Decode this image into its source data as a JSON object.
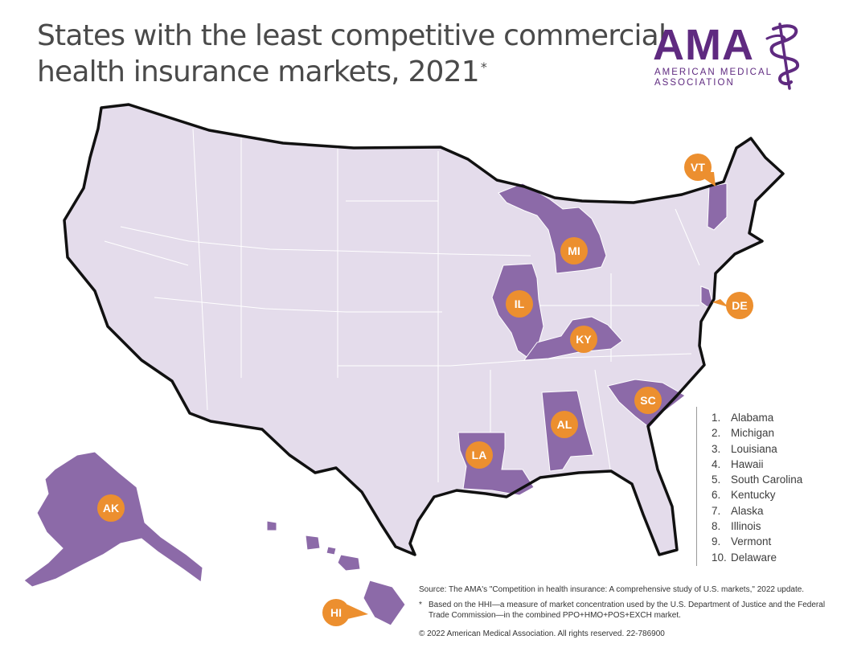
{
  "title": {
    "line1": "States with the least competitive commercial",
    "line2": "health insurance markets, 2021",
    "marker": "*"
  },
  "logo": {
    "word": "AMA",
    "line1": "AMERICAN MEDICAL",
    "line2": "ASSOCIATION"
  },
  "colors": {
    "land": "#e4dceb",
    "highlight": "#8c6aa8",
    "border": "#111111",
    "callout": "#ec8f2f"
  },
  "map": {
    "highlighted_states": [
      "MI",
      "IL",
      "KY",
      "AL",
      "LA",
      "SC",
      "VT",
      "DE",
      "AK",
      "HI"
    ],
    "labels": [
      "VT",
      "MI",
      "IL",
      "KY",
      "DE",
      "SC",
      "AL",
      "LA",
      "AK",
      "HI"
    ]
  },
  "legend": [
    {
      "rank": "1.",
      "state": "Alabama"
    },
    {
      "rank": "2.",
      "state": "Michigan"
    },
    {
      "rank": "3.",
      "state": "Louisiana"
    },
    {
      "rank": "4.",
      "state": "Hawaii"
    },
    {
      "rank": "5.",
      "state": "South Carolina"
    },
    {
      "rank": "6.",
      "state": "Kentucky"
    },
    {
      "rank": "7.",
      "state": "Alaska"
    },
    {
      "rank": "8.",
      "state": "Illinois"
    },
    {
      "rank": "9.",
      "state": "Vermont"
    },
    {
      "rank": "10.",
      "state": "Delaware"
    }
  ],
  "notes": {
    "source": "Source: The AMA's \"Competition in health insurance: A comprehensive study of U.S. markets,\" 2022 update.",
    "footnote_marker": "*",
    "footnote": "Based on the HHI—a measure of market concentration used by the U.S. Department of Justice and the Federal Trade Commission—in the combined PPO+HMO+POS+EXCH market.",
    "copyright": "© 2022 American Medical Association. All rights reserved. 22-786900"
  }
}
